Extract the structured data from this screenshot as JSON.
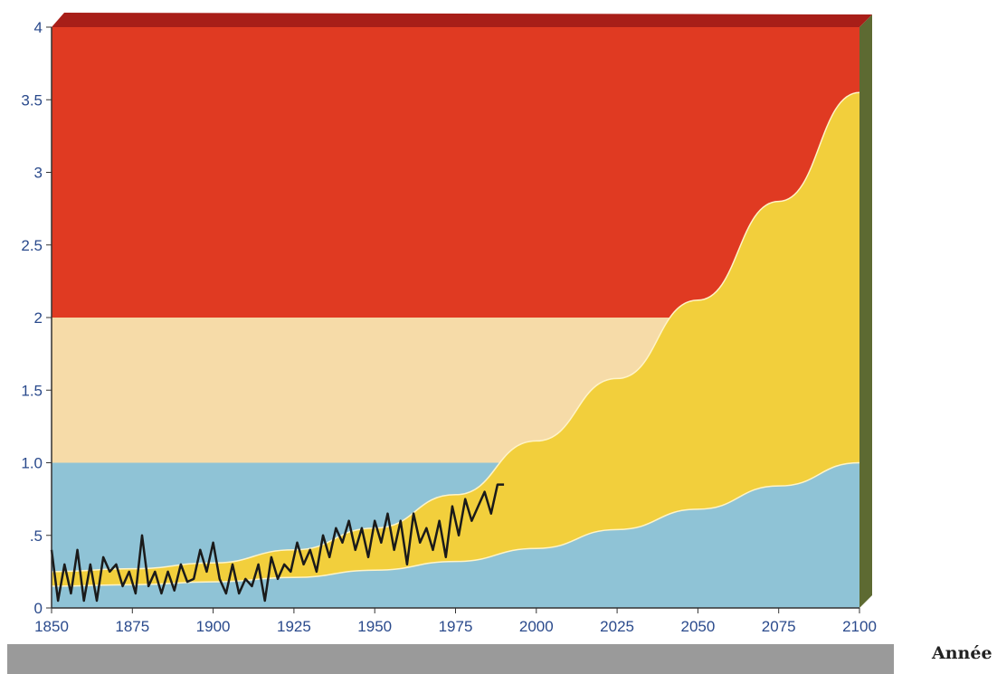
{
  "chart_data": {
    "type": "area",
    "title": "",
    "xlabel": "Année",
    "ylabel": "",
    "xlim": [
      1850,
      2100
    ],
    "ylim": [
      0,
      4
    ],
    "x_ticks": [
      "1850",
      "1875",
      "1900",
      "1925",
      "1950",
      "1975",
      "2000",
      "2025",
      "2050",
      "2075",
      "2100"
    ],
    "y_ticks": [
      "0",
      ".5",
      "1.0",
      "1.5",
      "2",
      "2.5",
      "3",
      "3.5",
      "4"
    ],
    "bands": [
      {
        "from": 0,
        "to": 1,
        "color": "#8fc3d6"
      },
      {
        "from": 1,
        "to": 2,
        "color": "#f6dba8"
      },
      {
        "from": 2,
        "to": 4,
        "color": "#e03a22"
      }
    ],
    "projection": {
      "color": "#f2cf3c",
      "x": [
        1850,
        1875,
        1900,
        1925,
        1950,
        1975,
        2000,
        2025,
        2050,
        2075,
        2100
      ],
      "upper": [
        0.25,
        0.27,
        0.31,
        0.4,
        0.55,
        0.78,
        1.15,
        1.58,
        2.12,
        2.8,
        3.55
      ],
      "lower": [
        0.15,
        0.16,
        0.18,
        0.21,
        0.26,
        0.32,
        0.41,
        0.54,
        0.68,
        0.84,
        1.0
      ]
    },
    "series": [
      {
        "color": "#1a1a1a",
        "x": [
          1850,
          1852,
          1854,
          1856,
          1858,
          1860,
          1862,
          1864,
          1866,
          1868,
          1870,
          1872,
          1874,
          1876,
          1878,
          1880,
          1882,
          1884,
          1886,
          1888,
          1890,
          1892,
          1894,
          1896,
          1898,
          1900,
          1902,
          1904,
          1906,
          1908,
          1910,
          1912,
          1914,
          1916,
          1918,
          1920,
          1922,
          1924,
          1926,
          1928,
          1930,
          1932,
          1934,
          1936,
          1938,
          1940,
          1942,
          1944,
          1946,
          1948,
          1950,
          1952,
          1954,
          1956,
          1958,
          1960,
          1962,
          1964,
          1966,
          1968,
          1970,
          1972,
          1974,
          1976,
          1978,
          1980,
          1982,
          1984,
          1986,
          1988,
          1990
        ],
        "y": [
          0.4,
          0.05,
          0.3,
          0.1,
          0.4,
          0.05,
          0.3,
          0.05,
          0.35,
          0.25,
          0.3,
          0.15,
          0.25,
          0.1,
          0.5,
          0.15,
          0.25,
          0.1,
          0.25,
          0.12,
          0.3,
          0.18,
          0.2,
          0.4,
          0.25,
          0.45,
          0.2,
          0.1,
          0.3,
          0.1,
          0.2,
          0.15,
          0.3,
          0.05,
          0.35,
          0.2,
          0.3,
          0.25,
          0.45,
          0.3,
          0.4,
          0.25,
          0.5,
          0.35,
          0.55,
          0.45,
          0.6,
          0.4,
          0.55,
          0.35,
          0.6,
          0.45,
          0.65,
          0.4,
          0.6,
          0.3,
          0.65,
          0.45,
          0.55,
          0.4,
          0.6,
          0.35,
          0.7,
          0.5,
          0.75,
          0.6,
          0.7,
          0.8,
          0.65,
          0.85,
          0.85
        ]
      }
    ]
  }
}
